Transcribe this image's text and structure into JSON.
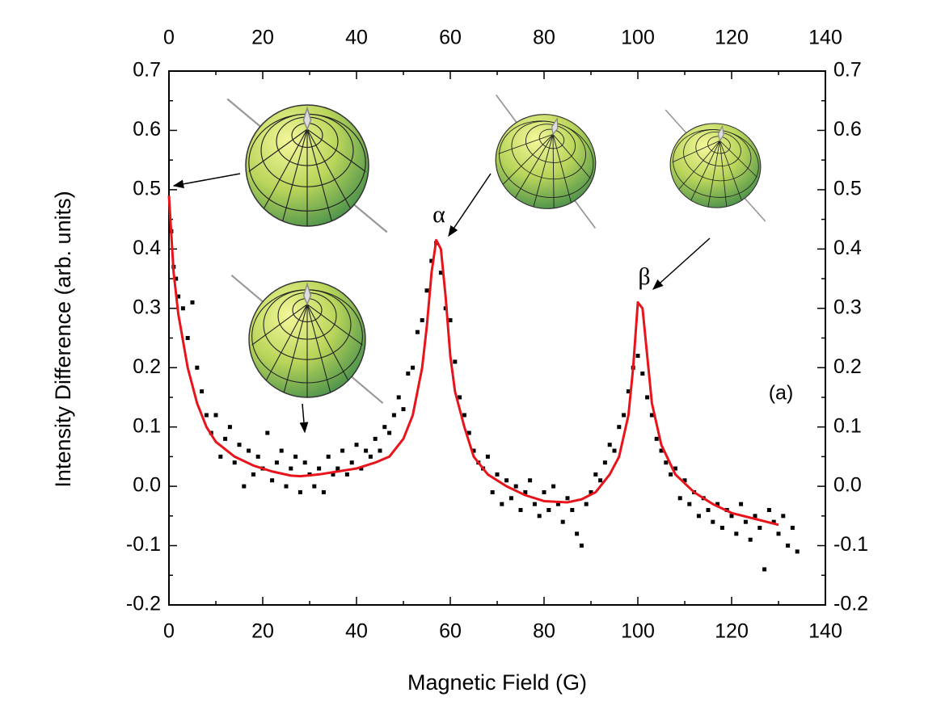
{
  "chart_data": {
    "type": "scatter",
    "xlabel": "Magnetic Field (G)",
    "ylabel": "Intensity Difference (arb. units)",
    "xlim": [
      0,
      140
    ],
    "ylim": [
      -0.2,
      0.7
    ],
    "xticks": [
      0,
      20,
      40,
      60,
      80,
      100,
      120,
      140
    ],
    "yticks": [
      -0.2,
      -0.1,
      {
        "value": 0,
        "label": "0.0"
      },
      0.1,
      0.2,
      0.3,
      0.4,
      0.5,
      0.6,
      0.7
    ],
    "annotations": [
      "α",
      "β",
      "(a)"
    ],
    "series": [
      {
        "type": "scatter",
        "color": "#000000",
        "x": [
          0.5,
          1,
          1.5,
          2,
          3,
          4,
          5,
          6,
          7,
          8,
          9,
          10,
          11,
          12,
          13,
          14,
          15,
          16,
          17,
          18,
          19,
          20,
          21,
          22,
          23,
          24,
          25,
          26,
          27,
          28,
          29,
          30,
          31,
          32,
          33,
          34,
          35,
          36,
          37,
          38,
          39,
          40,
          41,
          42,
          43,
          44,
          45,
          46,
          47,
          48,
          49,
          50,
          51,
          52,
          53,
          54,
          55,
          56,
          57,
          58,
          59,
          60,
          61,
          62,
          63,
          64,
          65,
          66,
          67,
          68,
          69,
          70,
          71,
          72,
          73,
          74,
          75,
          76,
          77,
          78,
          79,
          80,
          81,
          82,
          83,
          84,
          85,
          86,
          87,
          88,
          89,
          90,
          91,
          92,
          93,
          94,
          95,
          96,
          97,
          98,
          99,
          100,
          101,
          102,
          103,
          104,
          105,
          106,
          107,
          108,
          109,
          110,
          111,
          112,
          113,
          114,
          115,
          116,
          117,
          118,
          119,
          120,
          121,
          122,
          123,
          124,
          125,
          126,
          127,
          128,
          129,
          130,
          131,
          132,
          133,
          134
        ],
        "values": [
          0.43,
          0.37,
          0.35,
          0.32,
          0.3,
          0.25,
          0.31,
          0.2,
          0.16,
          0.12,
          0.09,
          0.12,
          0.05,
          0.08,
          0.1,
          0.04,
          0.07,
          0.0,
          0.06,
          0.02,
          0.05,
          0.03,
          0.09,
          0.01,
          0.04,
          0.06,
          0.0,
          0.03,
          0.05,
          -0.01,
          0.04,
          0.02,
          0.0,
          0.03,
          -0.01,
          0.05,
          0.02,
          0.03,
          0.06,
          0.02,
          0.04,
          0.07,
          0.03,
          0.06,
          0.05,
          0.08,
          0.06,
          0.1,
          0.09,
          0.12,
          0.15,
          0.13,
          0.19,
          0.2,
          0.26,
          0.28,
          0.33,
          0.38,
          0.41,
          0.36,
          0.3,
          0.28,
          0.21,
          0.15,
          0.12,
          0.09,
          0.06,
          0.04,
          0.03,
          0.05,
          -0.01,
          0.02,
          -0.03,
          0.01,
          -0.02,
          0.0,
          -0.04,
          -0.01,
          0.01,
          -0.03,
          -0.05,
          -0.01,
          -0.04,
          0.0,
          -0.03,
          -0.06,
          -0.02,
          -0.04,
          -0.08,
          -0.1,
          -0.03,
          -0.01,
          0.02,
          0.01,
          0.04,
          0.07,
          0.06,
          0.1,
          0.12,
          0.16,
          0.2,
          0.22,
          0.19,
          0.15,
          0.12,
          0.08,
          0.06,
          0.04,
          0.02,
          0.03,
          -0.02,
          0.01,
          -0.03,
          -0.01,
          -0.05,
          -0.02,
          -0.04,
          -0.06,
          -0.03,
          -0.07,
          -0.04,
          -0.05,
          -0.08,
          -0.03,
          -0.06,
          -0.09,
          -0.05,
          -0.07,
          -0.14,
          -0.04,
          -0.06,
          -0.08,
          -0.05,
          -0.1,
          -0.07,
          -0.11
        ]
      },
      {
        "type": "line",
        "color": "#e8141c",
        "x": [
          0,
          1,
          2,
          4,
          6,
          8,
          10,
          14,
          18,
          22,
          26,
          28,
          32,
          36,
          40,
          44,
          47,
          50,
          52,
          54,
          55,
          56,
          57,
          58,
          59,
          60,
          61,
          63,
          65,
          68,
          72,
          76,
          80,
          85,
          88,
          91,
          94,
          96,
          98,
          99,
          100,
          101,
          102,
          103,
          105,
          108,
          112,
          116,
          120,
          125,
          130
        ],
        "values": [
          0.49,
          0.36,
          0.29,
          0.2,
          0.14,
          0.1,
          0.075,
          0.05,
          0.035,
          0.025,
          0.018,
          0.017,
          0.02,
          0.025,
          0.03,
          0.04,
          0.05,
          0.08,
          0.12,
          0.2,
          0.27,
          0.36,
          0.415,
          0.4,
          0.32,
          0.22,
          0.16,
          0.1,
          0.05,
          0.02,
          0.0,
          -0.015,
          -0.025,
          -0.027,
          -0.022,
          -0.01,
          0.02,
          0.05,
          0.12,
          0.2,
          0.31,
          0.3,
          0.22,
          0.14,
          0.07,
          0.02,
          -0.01,
          -0.03,
          -0.045,
          -0.055,
          -0.065
        ]
      }
    ]
  }
}
